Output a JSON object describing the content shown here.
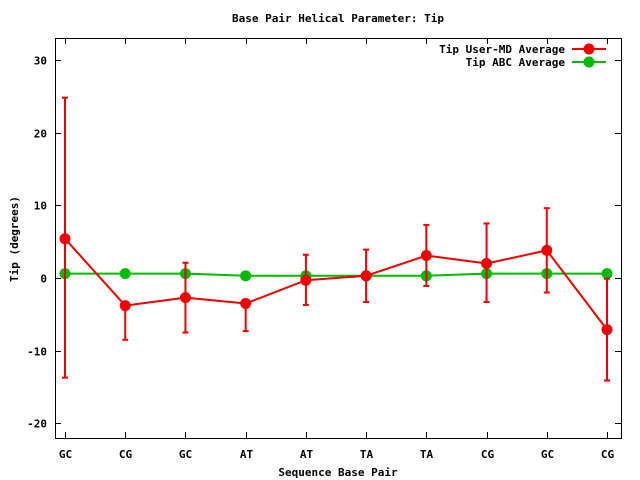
{
  "chart_data": {
    "type": "line",
    "title": "Base Pair Helical Parameter: Tip",
    "xlabel": "Sequence Base Pair",
    "ylabel": "Tip (degrees)",
    "categories": [
      "GC",
      "CG",
      "GC",
      "AT",
      "AT",
      "TA",
      "TA",
      "CG",
      "GC",
      "CG"
    ],
    "ylim": [
      -22,
      33
    ],
    "yticks": [
      -20,
      -10,
      0,
      10,
      20,
      30
    ],
    "ytick_labels": [
      "-20",
      "-10",
      "0",
      "10",
      "20",
      "30"
    ],
    "grid": false,
    "legend_position": "top-right",
    "series": [
      {
        "name": "Tip User-MD Average",
        "color": "#ee0000",
        "values": [
          5.4,
          -3.8,
          -2.7,
          -3.5,
          -0.3,
          0.3,
          3.1,
          2.0,
          3.8,
          -7.1
        ],
        "error_low": [
          -13.7,
          -8.5,
          -7.5,
          -7.3,
          -3.7,
          -3.3,
          -1.1,
          -3.3,
          -2.0,
          -14.1
        ],
        "error_high": [
          24.8,
          -3.8,
          2.1,
          -3.5,
          3.2,
          3.9,
          7.3,
          7.5,
          9.6,
          -0.1
        ]
      },
      {
        "name": "Tip ABC Average",
        "color": "#00bb00",
        "values": [
          0.6,
          0.6,
          0.6,
          0.3,
          0.3,
          0.3,
          0.3,
          0.6,
          0.6,
          0.6
        ]
      }
    ]
  }
}
